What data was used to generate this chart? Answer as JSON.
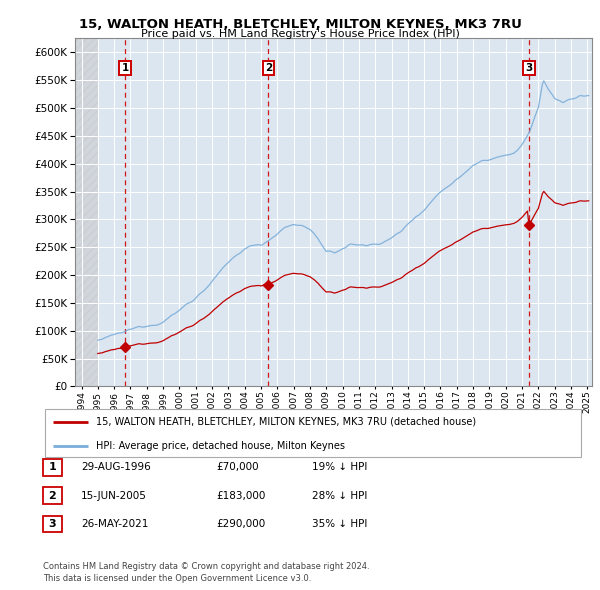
{
  "title1": "15, WALTON HEATH, BLETCHLEY, MILTON KEYNES, MK3 7RU",
  "title2": "Price paid vs. HM Land Registry's House Price Index (HPI)",
  "background_color": "#ffffff",
  "plot_bg_color": "#dce6f1",
  "grid_color": "#ffffff",
  "hpi_color": "#7aadd9",
  "price_color": "#c00000",
  "dashed_line_color": "#cc0000",
  "sales": [
    {
      "date_num": 1996.663,
      "price": 70000,
      "label": "1"
    },
    {
      "date_num": 2005.456,
      "price": 183000,
      "label": "2"
    },
    {
      "date_num": 2021.403,
      "price": 290000,
      "label": "3"
    }
  ],
  "legend_entries": [
    "15, WALTON HEATH, BLETCHLEY, MILTON KEYNES, MK3 7RU (detached house)",
    "HPI: Average price, detached house, Milton Keynes"
  ],
  "table_rows": [
    {
      "num": "1",
      "date": "29-AUG-1996",
      "price": "£70,000",
      "hpi": "19% ↓ HPI"
    },
    {
      "num": "2",
      "date": "15-JUN-2005",
      "price": "£183,000",
      "hpi": "28% ↓ HPI"
    },
    {
      "num": "3",
      "date": "26-MAY-2021",
      "price": "£290,000",
      "hpi": "35% ↓ HPI"
    }
  ],
  "footnote1": "Contains HM Land Registry data © Crown copyright and database right 2024.",
  "footnote2": "This data is licensed under the Open Government Licence v3.0.",
  "ylim": [
    0,
    625000
  ],
  "xlim_start": 1993.6,
  "xlim_end": 2025.3
}
